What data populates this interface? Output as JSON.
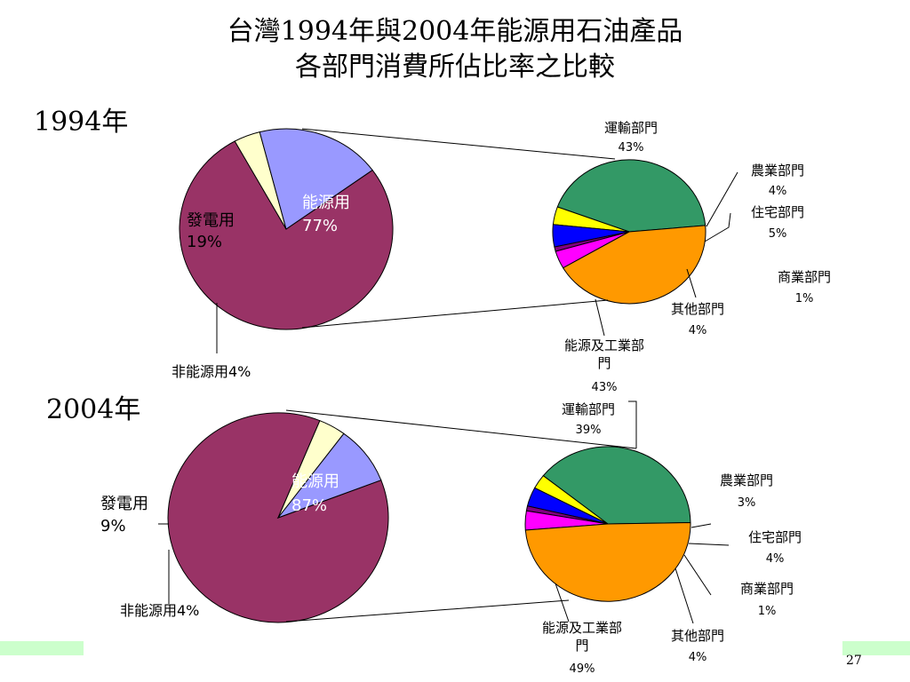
{
  "title": {
    "line1": "台灣1994年與2004年能源用石油產品",
    "line2": "各部門消費所佔比率之比較"
  },
  "page_number": "27",
  "colors": {
    "energy_use": "#993366",
    "power_generation": "#9999ff",
    "non_energy_use": "#ffffcc",
    "transport": "#339966",
    "agriculture": "#ffff00",
    "residential": "#0000ff",
    "commercial": "#800080",
    "other": "#ff00ff",
    "industry": "#ff9900"
  },
  "chart_data": [
    {
      "type": "pie",
      "year_label": "1994年",
      "main": {
        "slices": [
          {
            "key": "energy_use",
            "label": "能源用",
            "pct_text": "77%",
            "value": 77
          },
          {
            "key": "non_energy_use",
            "label": "非能源用",
            "pct_text": "4%",
            "value": 4
          },
          {
            "key": "power_generation",
            "label": "發電用",
            "pct_text": "19%",
            "value": 19
          }
        ]
      },
      "sector": {
        "slices": [
          {
            "key": "transport",
            "label": "運輸部門",
            "pct_text": "43%",
            "value": 43
          },
          {
            "key": "agriculture",
            "label": "農業部門",
            "pct_text": "4%",
            "value": 4
          },
          {
            "key": "residential",
            "label": "住宅部門",
            "pct_text": "5%",
            "value": 5
          },
          {
            "key": "commercial",
            "label": "商業部門",
            "pct_text": "1%",
            "value": 1
          },
          {
            "key": "other",
            "label": "其他部門",
            "pct_text": "4%",
            "value": 4
          },
          {
            "key": "industry",
            "label": "能源及工業部門",
            "label_lines": [
              "能源及工業部",
              "門"
            ],
            "pct_text": "43%",
            "value": 43
          }
        ]
      }
    },
    {
      "type": "pie",
      "year_label": "2004年",
      "main": {
        "slices": [
          {
            "key": "energy_use",
            "label": "能源用",
            "pct_text": "87%",
            "value": 87
          },
          {
            "key": "non_energy_use",
            "label": "非能源用",
            "pct_text": "4%",
            "value": 4
          },
          {
            "key": "power_generation",
            "label": "發電用",
            "pct_text": "9%",
            "value": 9
          }
        ]
      },
      "sector": {
        "slices": [
          {
            "key": "transport",
            "label": "運輸部門",
            "pct_text": "39%",
            "value": 39
          },
          {
            "key": "agriculture",
            "label": "農業部門",
            "pct_text": "3%",
            "value": 3
          },
          {
            "key": "residential",
            "label": "住宅部門",
            "pct_text": "4%",
            "value": 4
          },
          {
            "key": "commercial",
            "label": "商業部門",
            "pct_text": "1%",
            "value": 1
          },
          {
            "key": "other",
            "label": "其他部門",
            "pct_text": "4%",
            "value": 4
          },
          {
            "key": "industry",
            "label": "能源及工業部門",
            "label_lines": [
              "能源及工業部",
              "門"
            ],
            "pct_text": "49%",
            "value": 49
          }
        ]
      }
    }
  ]
}
